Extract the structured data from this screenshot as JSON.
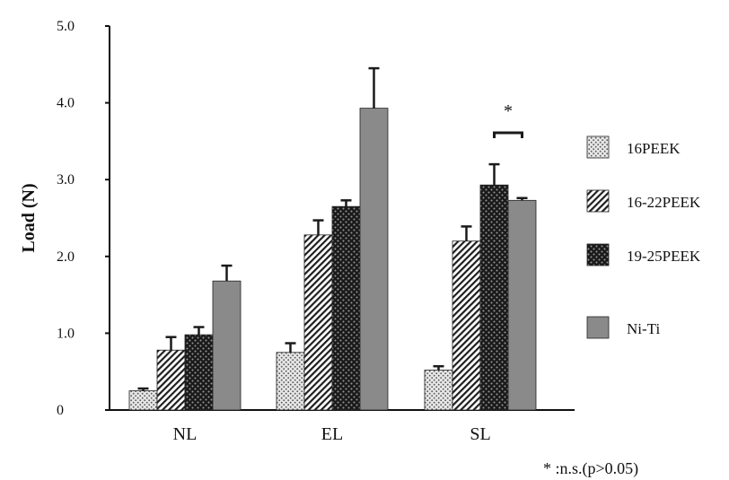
{
  "chart_data": {
    "type": "bar",
    "ylabel": "Load (N)",
    "ylim": [
      0,
      5.0
    ],
    "yticks": [
      "0",
      "1.0",
      "2.0",
      "3.0",
      "4.0",
      "5.0"
    ],
    "categories": [
      "NL",
      "EL",
      "SL"
    ],
    "series": [
      {
        "name": "16PEEK",
        "values": [
          0.25,
          0.75,
          0.52
        ],
        "errors": [
          0.03,
          0.12,
          0.05
        ],
        "pattern": "dots"
      },
      {
        "name": "16-22PEEK",
        "values": [
          0.78,
          2.28,
          2.2
        ],
        "errors": [
          0.17,
          0.19,
          0.19
        ],
        "pattern": "diagonal"
      },
      {
        "name": "19-25PEEK",
        "values": [
          0.98,
          2.65,
          2.93
        ],
        "errors": [
          0.1,
          0.08,
          0.27
        ],
        "pattern": "checker"
      },
      {
        "name": "Ni-Ti",
        "values": [
          1.68,
          3.93,
          2.73
        ],
        "errors": [
          0.2,
          0.52,
          0.03
        ],
        "pattern": "solid"
      }
    ],
    "annotation": {
      "symbol": "*",
      "category": "SL",
      "between": [
        "19-25PEEK",
        "Ni-Ti"
      ]
    },
    "footnote": "* :n.s.(p>0.05)",
    "legend_position": "right",
    "grid": false,
    "colors": {
      "solid": "#8a8a8a",
      "dark": "#1a1a1a",
      "axis": "#111111"
    }
  }
}
